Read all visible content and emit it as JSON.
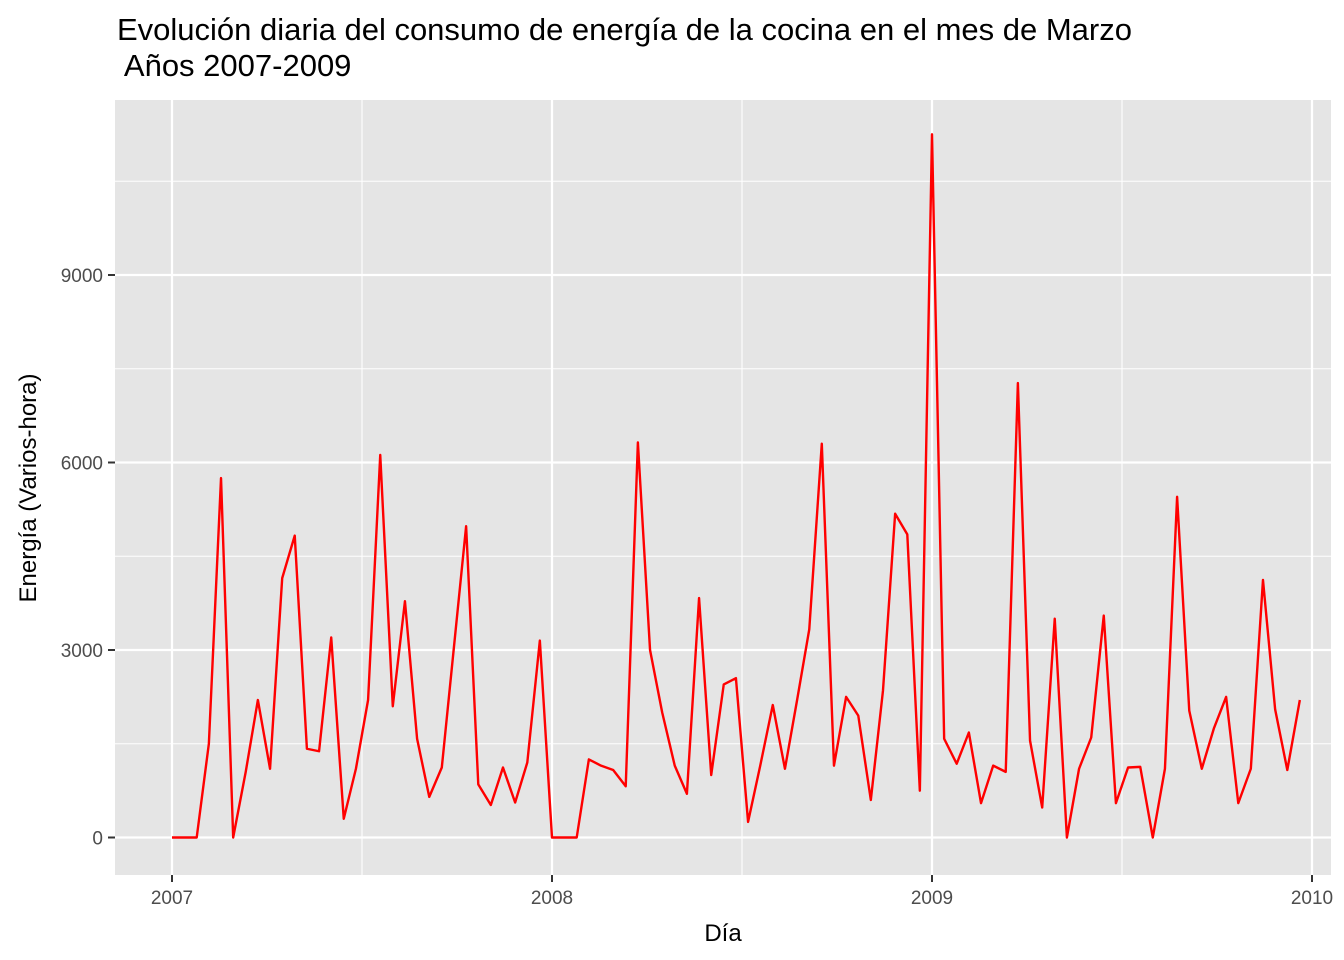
{
  "chart_data": {
    "type": "line",
    "title": "Evolución diaria del consumo de energía de la cocina en el mes de Marzo",
    "subtitle": " Años 2007-2009",
    "xlabel": "Día",
    "ylabel": "Energía (Varios-hora)",
    "xlim": [
      2006.85,
      2010.05
    ],
    "ylim": [
      -600,
      11800
    ],
    "x_ticks": [
      2007,
      2008,
      2009,
      2010
    ],
    "x_tick_labels": [
      "2007",
      "2008",
      "2009",
      "2010"
    ],
    "x_minor_ticks": [
      2007.5,
      2008.5,
      2009.5
    ],
    "y_ticks": [
      0,
      3000,
      6000,
      9000
    ],
    "y_tick_labels": [
      "0",
      "3000",
      "6000",
      "9000"
    ],
    "y_minor_ticks": [
      1500,
      4500,
      7500,
      10500
    ],
    "grid": true,
    "background": "#e5e5e5",
    "grid_color": "#ffffff",
    "series": [
      {
        "color": "#ff0000",
        "x": [
          2007.0,
          2007.032,
          2007.065,
          2007.097,
          2007.129,
          2007.161,
          2007.194,
          2007.226,
          2007.258,
          2007.29,
          2007.323,
          2007.355,
          2007.387,
          2007.419,
          2007.452,
          2007.484,
          2007.516,
          2007.548,
          2007.581,
          2007.613,
          2007.645,
          2007.677,
          2007.71,
          2007.742,
          2007.774,
          2007.806,
          2007.839,
          2007.871,
          2007.903,
          2007.935,
          2007.968,
          2008.0,
          2008.032,
          2008.065,
          2008.097,
          2008.129,
          2008.161,
          2008.194,
          2008.226,
          2008.258,
          2008.29,
          2008.323,
          2008.355,
          2008.387,
          2008.419,
          2008.452,
          2008.484,
          2008.516,
          2008.548,
          2008.581,
          2008.613,
          2008.645,
          2008.677,
          2008.71,
          2008.742,
          2008.774,
          2008.806,
          2008.839,
          2008.871,
          2008.903,
          2008.935,
          2008.968,
          2009.0,
          2009.032,
          2009.065,
          2009.097,
          2009.129,
          2009.161,
          2009.194,
          2009.226,
          2009.258,
          2009.29,
          2009.323,
          2009.355,
          2009.387,
          2009.419,
          2009.452,
          2009.484,
          2009.516,
          2009.548,
          2009.581,
          2009.613,
          2009.645,
          2009.677,
          2009.71,
          2009.742,
          2009.774,
          2009.806,
          2009.839,
          2009.871,
          2009.903,
          2009.935,
          2009.968
        ],
        "y": [
          0,
          0,
          0,
          1500,
          5750,
          0,
          1050,
          2200,
          1100,
          4150,
          4830,
          1420,
          1380,
          3200,
          300,
          1100,
          2200,
          6120,
          2100,
          3780,
          1580,
          650,
          1120,
          3050,
          4980,
          850,
          520,
          1120,
          560,
          1200,
          3150,
          0,
          0,
          0,
          1250,
          1150,
          1080,
          820,
          6320,
          3000,
          2000,
          1150,
          700,
          3830,
          1000,
          2450,
          2550,
          250,
          1150,
          2120,
          1100,
          2200,
          3330,
          6300,
          1150,
          2250,
          1950,
          600,
          2350,
          5180,
          4850,
          750,
          11250,
          1580,
          1180,
          1680,
          550,
          1150,
          1050,
          7270,
          1550,
          480,
          3500,
          0,
          1100,
          1600,
          3550,
          550,
          1120,
          1130,
          0,
          1100,
          5450,
          2030,
          1100,
          1750,
          2250,
          550,
          1100,
          4120,
          2050,
          1080,
          2200
        ]
      }
    ]
  }
}
